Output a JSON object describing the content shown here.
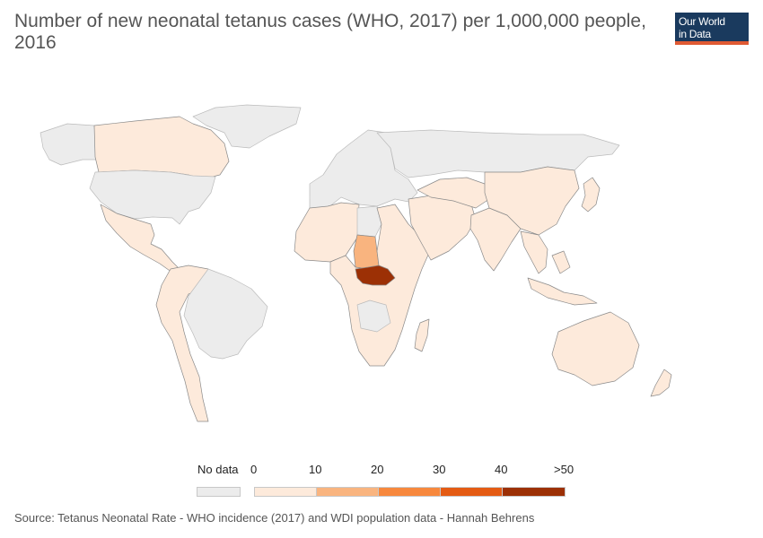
{
  "title": "Number of new neonatal tetanus cases (WHO, 2017) per 1,000,000 people, 2016",
  "logo": {
    "line1": "Our World",
    "line2": "in Data"
  },
  "colors": {
    "no_data": "#ececec",
    "bin_0_10": "#fdeadb",
    "bin_10_20": "#f9b47f",
    "bin_20_30": "#f7883d",
    "bin_30_40": "#e45b13",
    "bin_40_50": "#9c3005",
    "border": "#8a8a8a",
    "no_data_border": "#bbbbbb"
  },
  "legend": {
    "no_data_label": "No data",
    "ticks": [
      "0",
      "10",
      "20",
      "30",
      "40",
      ">50"
    ]
  },
  "regions": [
    {
      "id": "greenland",
      "bin": "no_data"
    },
    {
      "id": "canada",
      "bin": "bin_0_10"
    },
    {
      "id": "usa",
      "bin": "no_data"
    },
    {
      "id": "alaska",
      "bin": "no_data"
    },
    {
      "id": "mexico-central-america",
      "bin": "bin_0_10"
    },
    {
      "id": "south-america-west",
      "bin": "bin_0_10"
    },
    {
      "id": "brazil",
      "bin": "no_data"
    },
    {
      "id": "europe",
      "bin": "no_data"
    },
    {
      "id": "russia",
      "bin": "no_data"
    },
    {
      "id": "north-africa",
      "bin": "bin_0_10"
    },
    {
      "id": "libya",
      "bin": "no_data"
    },
    {
      "id": "chad",
      "bin": "bin_10_20"
    },
    {
      "id": "central-african-republic",
      "bin": "bin_40_50"
    },
    {
      "id": "sub-saharan-africa",
      "bin": "bin_0_10"
    },
    {
      "id": "congo-drc",
      "bin": "no_data"
    },
    {
      "id": "madagascar",
      "bin": "bin_0_10"
    },
    {
      "id": "middle-east",
      "bin": "bin_0_10"
    },
    {
      "id": "central-asia",
      "bin": "bin_0_10"
    },
    {
      "id": "india",
      "bin": "bin_0_10"
    },
    {
      "id": "china",
      "bin": "bin_0_10"
    },
    {
      "id": "southeast-asia",
      "bin": "bin_0_10"
    },
    {
      "id": "japan",
      "bin": "bin_0_10"
    },
    {
      "id": "australia",
      "bin": "bin_0_10"
    },
    {
      "id": "new-zealand",
      "bin": "bin_0_10"
    }
  ],
  "source": "Source: Tetanus Neonatal Rate - WHO incidence (2017) and WDI population data - Hannah Behrens"
}
